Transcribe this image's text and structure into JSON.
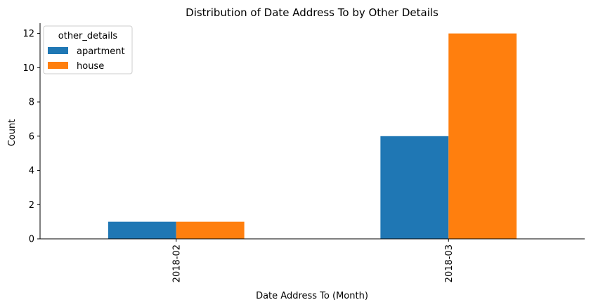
{
  "chart_data": {
    "type": "bar",
    "title": "Distribution of Date Address To by Other Details",
    "xlabel": "Date Address To (Month)",
    "ylabel": "Count",
    "categories": [
      "2018-02",
      "2018-03"
    ],
    "series": [
      {
        "name": "apartment",
        "values": [
          1,
          6
        ],
        "color": "#1f77b4"
      },
      {
        "name": "house",
        "values": [
          1,
          12
        ],
        "color": "#ff7f0e"
      }
    ],
    "ylim": [
      0,
      12.6
    ],
    "yticks": [
      0,
      2,
      4,
      6,
      8,
      10,
      12
    ],
    "grid": false,
    "legend": {
      "title": "other_details",
      "position": "top-left"
    }
  }
}
